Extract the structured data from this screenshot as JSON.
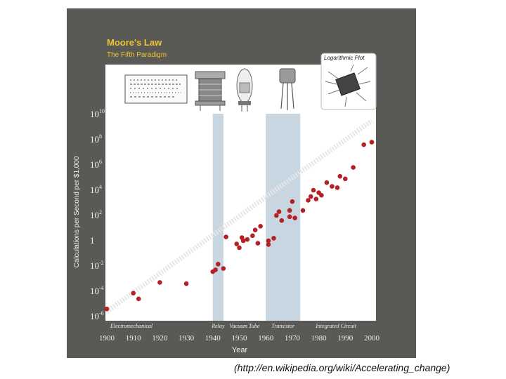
{
  "caption": "(http://en.wikipedia.org/wiki/Accelerating_change)",
  "colors": {
    "frame": "#595955",
    "plot_bg": "#ffffff",
    "title": "#f2c232",
    "point": "#b52025",
    "band": "#c8d6e2",
    "trend": "#e6e6e6"
  },
  "icons": [
    "punch-card-icon",
    "relay-icon",
    "vacuum-tube-icon",
    "transistor-icon",
    "integrated-circuit-icon"
  ],
  "chart_data": {
    "type": "scatter",
    "title": "Moore's Law",
    "subtitle": "The Fifth Paradigm",
    "annotation": "Logarithmic Plot",
    "xlabel": "Year",
    "ylabel": "Calculations per Second per $1,000",
    "xlim": [
      1900,
      2000
    ],
    "ylim": [
      -6,
      10
    ],
    "log_scale_y": true,
    "x_ticks": [
      "1900",
      "1910",
      "1920",
      "1930",
      "1940",
      "1950",
      "1960",
      "1970",
      "1980",
      "1990",
      "2000"
    ],
    "x_tick_values": [
      1900,
      1910,
      1920,
      1930,
      1940,
      1950,
      1960,
      1970,
      1980,
      1990,
      2000
    ],
    "y_ticks": [
      {
        "exp": -6,
        "base": "10",
        "sup": "-6"
      },
      {
        "exp": -4,
        "base": "10",
        "sup": "-4"
      },
      {
        "exp": -2,
        "base": "10",
        "sup": "-2"
      },
      {
        "exp": 0,
        "base": "1",
        "sup": ""
      },
      {
        "exp": 2,
        "base": "10",
        "sup": "2"
      },
      {
        "exp": 4,
        "base": "10",
        "sup": "4"
      },
      {
        "exp": 6,
        "base": "10",
        "sup": "6"
      },
      {
        "exp": 8,
        "base": "10",
        "sup": "8"
      },
      {
        "exp": 10,
        "base": "10",
        "sup": "10"
      }
    ],
    "paradigms": [
      {
        "label": "Electromechanical",
        "start": 1900,
        "end": 1940,
        "shaded": false
      },
      {
        "label": "Relay",
        "start": 1940,
        "end": 1944,
        "shaded": true
      },
      {
        "label": "Vacuum Tube",
        "start": 1944,
        "end": 1960,
        "shaded": false
      },
      {
        "label": "Transistor",
        "start": 1960,
        "end": 1973,
        "shaded": true
      },
      {
        "label": "Integrated Circuit",
        "start": 1973,
        "end": 2000,
        "shaded": false
      }
    ],
    "trend": {
      "x": [
        1900,
        2000
      ],
      "y": [
        -5.6,
        9.5
      ]
    },
    "points": [
      {
        "x": 1900,
        "y": -5.4
      },
      {
        "x": 1910,
        "y": -4.15
      },
      {
        "x": 1912,
        "y": -4.6
      },
      {
        "x": 1920,
        "y": -3.3
      },
      {
        "x": 1930,
        "y": -3.4
      },
      {
        "x": 1940,
        "y": -2.45
      },
      {
        "x": 1941,
        "y": -2.3
      },
      {
        "x": 1942,
        "y": -1.85
      },
      {
        "x": 1944,
        "y": -2.2
      },
      {
        "x": 1945,
        "y": 0.3
      },
      {
        "x": 1949,
        "y": -0.25
      },
      {
        "x": 1950,
        "y": -0.55
      },
      {
        "x": 1951,
        "y": 0.25
      },
      {
        "x": 1951.5,
        "y": 0.0
      },
      {
        "x": 1953,
        "y": 0.1
      },
      {
        "x": 1955,
        "y": 0.4
      },
      {
        "x": 1956,
        "y": 0.85
      },
      {
        "x": 1957,
        "y": -0.2
      },
      {
        "x": 1958,
        "y": 1.15
      },
      {
        "x": 1961,
        "y": 0.0
      },
      {
        "x": 1961,
        "y": -0.3
      },
      {
        "x": 1963,
        "y": 0.2
      },
      {
        "x": 1964,
        "y": 2.0
      },
      {
        "x": 1965,
        "y": 2.3
      },
      {
        "x": 1966,
        "y": 1.6
      },
      {
        "x": 1969,
        "y": 2.4
      },
      {
        "x": 1969,
        "y": 1.9
      },
      {
        "x": 1970,
        "y": 3.1
      },
      {
        "x": 1971,
        "y": 1.8
      },
      {
        "x": 1974,
        "y": 2.4
      },
      {
        "x": 1976,
        "y": 3.2
      },
      {
        "x": 1977,
        "y": 3.5
      },
      {
        "x": 1978,
        "y": 4.0
      },
      {
        "x": 1979,
        "y": 3.3
      },
      {
        "x": 1980,
        "y": 3.8
      },
      {
        "x": 1981,
        "y": 3.6
      },
      {
        "x": 1983,
        "y": 4.6
      },
      {
        "x": 1985,
        "y": 4.3
      },
      {
        "x": 1987,
        "y": 4.2
      },
      {
        "x": 1988,
        "y": 5.1
      },
      {
        "x": 1990,
        "y": 4.9
      },
      {
        "x": 1993,
        "y": 5.8
      },
      {
        "x": 1997,
        "y": 7.6
      },
      {
        "x": 2000,
        "y": 7.8
      }
    ]
  }
}
